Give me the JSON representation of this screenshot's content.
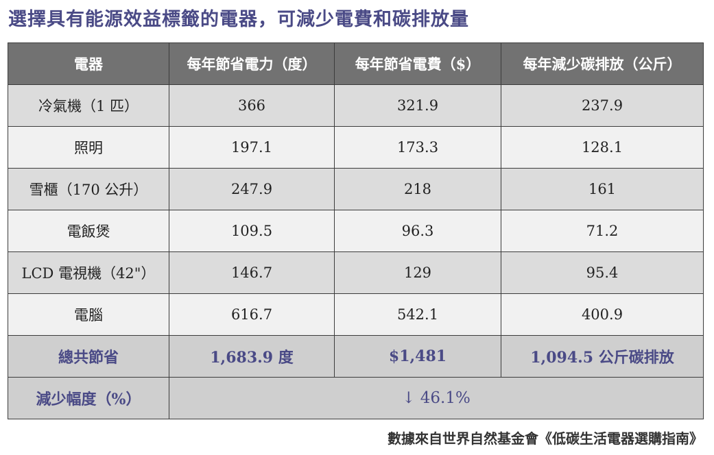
{
  "title": "選擇具有能源效益標籤的電器，可減少電費和碳排放量",
  "table": {
    "headers": [
      "電器",
      "每年節省電力（度）",
      "每年節省電費（$）",
      "每年減少碳排放（公斤）"
    ],
    "rows": [
      [
        "冷氣機（1 匹）",
        "366",
        "321.9",
        "237.9"
      ],
      [
        "照明",
        "197.1",
        "173.3",
        "128.1"
      ],
      [
        "雪櫃（170 公升）",
        "247.9",
        "218",
        "161"
      ],
      [
        "電飯煲",
        "109.5",
        "96.3",
        "71.2"
      ],
      [
        "LCD 電視機（42\"）",
        "146.7",
        "129",
        "95.4"
      ],
      [
        "電腦",
        "616.7",
        "542.1",
        "400.9"
      ]
    ],
    "total": {
      "label": "總共節省",
      "values": [
        "1,683.9 度",
        "$1,481",
        "1,094.5 公斤碳排放"
      ]
    },
    "reduction": {
      "label": "減少幅度（%）",
      "value": "↓ 46.1%"
    }
  },
  "source": "數據來自世界自然基金會《低碳生活電器選購指南》",
  "colors": {
    "title": "#4a4a86",
    "header_bg": "#727272",
    "row_odd": "#dcdcdc",
    "row_even": "#f1f1f1",
    "total_bg": "#cfcfcf"
  }
}
